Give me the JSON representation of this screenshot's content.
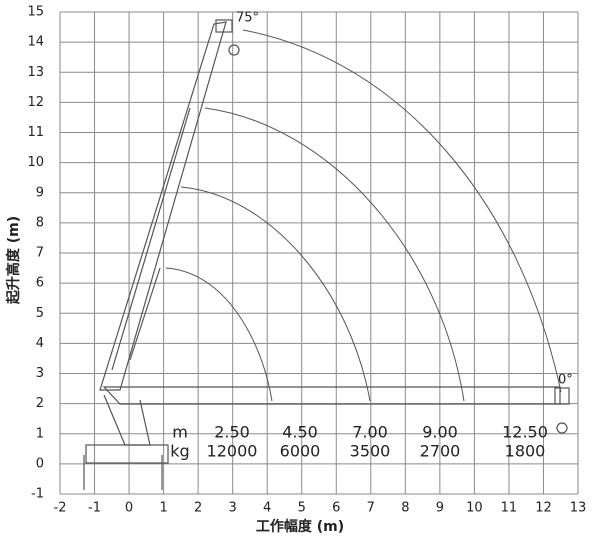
{
  "chart_data": {
    "type": "load-chart",
    "x_label": "工作幅度 (m)",
    "y_label": "起升高度 (m)",
    "xlim": [
      -2,
      13
    ],
    "xticks": [
      -2,
      -1,
      0,
      1,
      2,
      3,
      4,
      5,
      6,
      7,
      8,
      9,
      10,
      11,
      12,
      13
    ],
    "ylim": [
      -1,
      15
    ],
    "yticks": [
      -1,
      0,
      1,
      2,
      3,
      4,
      5,
      6,
      7,
      8,
      9,
      10,
      11,
      12,
      13,
      14,
      15
    ],
    "grid": true,
    "color": "#555555",
    "angle_labels": [
      "75°",
      "0°"
    ],
    "load_table": {
      "row_labels": [
        "m",
        "kg"
      ],
      "radius": [
        "2.50",
        "4.50",
        "7.00",
        "9.00",
        "12.50"
      ],
      "load": [
        "12000",
        "6000",
        "3500",
        "2700",
        "1800"
      ]
    }
  }
}
